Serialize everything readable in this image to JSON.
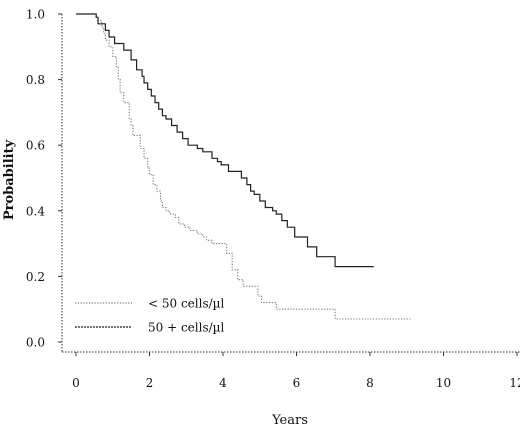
{
  "chart_data": {
    "type": "line",
    "title": "",
    "xlabel": "Years",
    "ylabel": "Probability",
    "xlim": [
      0,
      12
    ],
    "ylim": [
      0,
      1.0
    ],
    "x_ticks": [
      0,
      2,
      4,
      6,
      8,
      10,
      12
    ],
    "x_tick_labels": [
      "0",
      "2",
      "4",
      "6",
      "8",
      "10",
      "12"
    ],
    "y_ticks": [
      0.0,
      0.2,
      0.4,
      0.6,
      0.8,
      1.0
    ],
    "y_tick_labels": [
      "0.0",
      "0.2",
      "0.4",
      "0.6",
      "0.8",
      "1.0"
    ],
    "step": true,
    "grid": false,
    "legend_position": "bottom-left",
    "series": [
      {
        "name": "< 50 cells/µl",
        "style": "dotted",
        "color": "#777777",
        "x": [
          0,
          0.55,
          0.6,
          0.7,
          0.75,
          0.8,
          0.9,
          1.0,
          1.1,
          1.15,
          1.2,
          1.3,
          1.45,
          1.5,
          1.55,
          1.75,
          1.85,
          1.95,
          2.0,
          2.1,
          2.2,
          2.3,
          2.35,
          2.45,
          2.55,
          2.7,
          2.8,
          2.95,
          3.1,
          3.3,
          3.45,
          3.55,
          3.7,
          4.1,
          4.25,
          4.4,
          4.55,
          4.95,
          5.05,
          5.45,
          7.05,
          9.1
        ],
        "y": [
          1.0,
          0.99,
          0.98,
          0.96,
          0.94,
          0.92,
          0.9,
          0.87,
          0.84,
          0.8,
          0.76,
          0.73,
          0.68,
          0.66,
          0.63,
          0.59,
          0.56,
          0.53,
          0.51,
          0.48,
          0.46,
          0.43,
          0.41,
          0.4,
          0.39,
          0.38,
          0.36,
          0.35,
          0.34,
          0.33,
          0.32,
          0.31,
          0.3,
          0.27,
          0.22,
          0.19,
          0.17,
          0.14,
          0.12,
          0.1,
          0.07,
          0.07
        ]
      },
      {
        "name": "50 + cells/µl",
        "style": "solid",
        "color": "#222222",
        "x": [
          0,
          0.55,
          0.6,
          0.8,
          0.9,
          1.05,
          1.3,
          1.5,
          1.65,
          1.8,
          1.85,
          1.95,
          2.05,
          2.15,
          2.25,
          2.35,
          2.45,
          2.6,
          2.75,
          2.9,
          3.05,
          3.3,
          3.45,
          3.7,
          3.85,
          3.95,
          4.15,
          4.5,
          4.65,
          4.75,
          4.85,
          5.0,
          5.15,
          5.35,
          5.45,
          5.6,
          5.75,
          5.95,
          6.3,
          6.55,
          7.05,
          8.1
        ],
        "y": [
          1.0,
          0.99,
          0.97,
          0.95,
          0.93,
          0.91,
          0.89,
          0.86,
          0.83,
          0.81,
          0.79,
          0.77,
          0.75,
          0.73,
          0.71,
          0.69,
          0.68,
          0.66,
          0.64,
          0.62,
          0.6,
          0.59,
          0.58,
          0.56,
          0.55,
          0.54,
          0.52,
          0.5,
          0.48,
          0.46,
          0.45,
          0.43,
          0.41,
          0.4,
          0.39,
          0.37,
          0.35,
          0.32,
          0.29,
          0.26,
          0.23,
          0.23
        ]
      }
    ]
  }
}
